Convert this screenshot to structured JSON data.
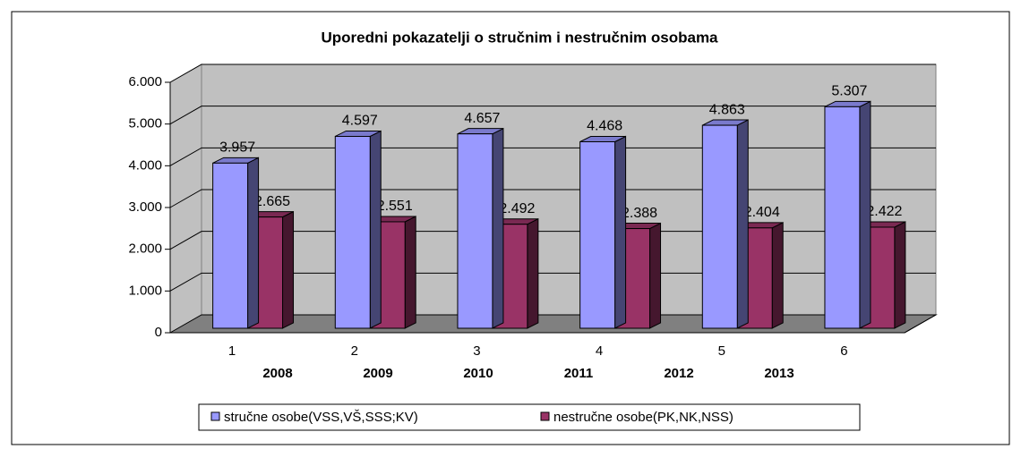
{
  "chart_data": {
    "type": "bar3d",
    "title": "Uporedni pokazatelji o stručnim i nestručnim osobama",
    "categories": [
      "1",
      "2",
      "3",
      "4",
      "5",
      "6"
    ],
    "year_labels": [
      "2008",
      "2009",
      "2010",
      "2011",
      "2012",
      "2013"
    ],
    "series": [
      {
        "name": "stručne osobe(VSS,VŠ,SSS;KV)",
        "color": "#9999ff",
        "values": [
          3957,
          4597,
          4657,
          4468,
          4863,
          5307
        ],
        "value_labels": [
          "3.957",
          "4.597",
          "4.657",
          "4.468",
          "4.863",
          "5.307"
        ]
      },
      {
        "name": "nestručne osobe(PK,NK,NSS)",
        "color": "#993366",
        "values": [
          2665,
          2551,
          2492,
          2388,
          2404,
          2422
        ],
        "value_labels": [
          "2.665",
          "2.551",
          "2.492",
          "2.388",
          "2.404",
          "2.422"
        ]
      }
    ],
    "ylim": [
      0,
      6000
    ],
    "yticks": [
      0,
      {
        "value": 1000,
        "label": "1.000"
      },
      {
        "value": 2000,
        "label": "2.000"
      },
      {
        "value": 3000,
        "label": "3.000"
      },
      {
        "value": 4000,
        "label": "4.000"
      },
      {
        "value": 5000,
        "label": "5.000"
      },
      {
        "value": 6000,
        "label": "6.000"
      }
    ],
    "grid": true,
    "legend": "bottom"
  }
}
